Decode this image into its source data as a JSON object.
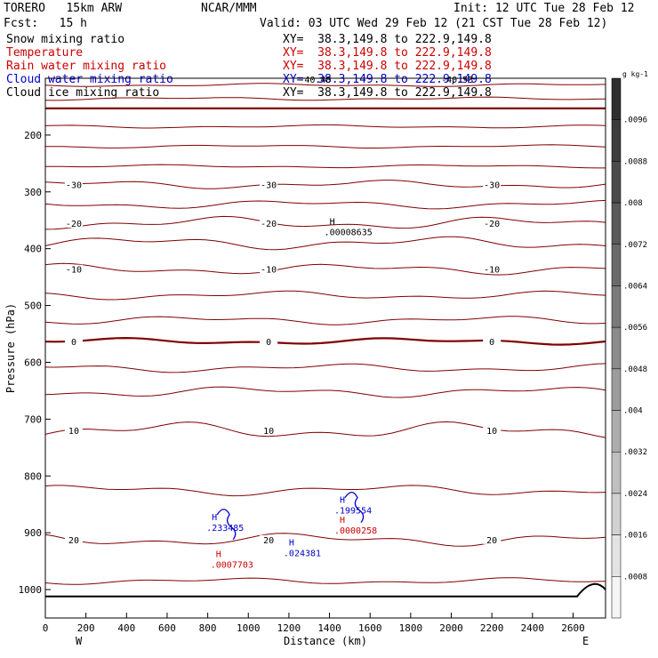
{
  "header": {
    "model": "TORERO   15km ARW",
    "org": "NCAR/MMM",
    "init": "Init: 12 UTC Tue 28 Feb 12",
    "fcst": "Fcst:   15 h",
    "valid": "Valid: 03 UTC Wed 29 Feb 12 (21 CST Tue 28 Feb 12)"
  },
  "fields": [
    {
      "name": "Snow mixing ratio",
      "xy": "XY=  38.3,149.8 to 222.9,149.8",
      "color": "#000000"
    },
    {
      "name": "Temperature",
      "xy": "XY=  38.3,149.8 to 222.9,149.8",
      "color": "#cc0000"
    },
    {
      "name": "Rain water mixing ratio",
      "xy": "XY=  38.3,149.8 to 222.9,149.8",
      "color": "#cc0000"
    },
    {
      "name": "Cloud water mixing ratio",
      "xy": "XY=  38.3,149.8 to 222.9,149.8",
      "color": "#0000cc"
    },
    {
      "name": "Cloud ice mixing ratio",
      "xy": "XY=  38.3,149.8 to 222.9,149.8",
      "color": "#000000"
    }
  ],
  "chart_data": {
    "type": "line",
    "xlabel": "Distance (km)",
    "ylabel": "Pressure (hPa)",
    "xlim": [
      0,
      2760
    ],
    "ylim": [
      1050,
      100
    ],
    "x_ticks": [
      "0",
      "200",
      "400",
      "600",
      "800",
      "1000",
      "1200",
      "1400",
      "1600",
      "1800",
      "2000",
      "2200",
      "2400",
      "2600"
    ],
    "y_ticks": [
      "200",
      "300",
      "400",
      "500",
      "600",
      "700",
      "800",
      "900",
      "1000"
    ],
    "left_end_label": "W",
    "right_end_label": "E",
    "temperature_isotherms": {
      "color": "#800000",
      "levels": [
        {
          "p": 112,
          "label": "",
          "slope": 3
        },
        {
          "p": 136,
          "label": "",
          "slope": 3
        },
        {
          "p": 153,
          "label": "",
          "slope": 0,
          "bold": true
        },
        {
          "p": 185,
          "label": "",
          "slope": 3
        },
        {
          "p": 220,
          "label": "",
          "slope": 3
        },
        {
          "p": 255,
          "label": "",
          "slope": 3
        },
        {
          "p": 287,
          "label": "-30",
          "slope": 8
        },
        {
          "p": 322,
          "label": "",
          "slope": 8
        },
        {
          "p": 355,
          "label": "-20",
          "slope": 12
        },
        {
          "p": 390,
          "label": "",
          "slope": 12
        },
        {
          "p": 436,
          "label": "-10",
          "slope": 10
        },
        {
          "p": 482,
          "label": "",
          "slope": 8
        },
        {
          "p": 526,
          "label": "",
          "slope": 8
        },
        {
          "p": 563,
          "label": "0",
          "slope": 6,
          "bold": true
        },
        {
          "p": 610,
          "label": "",
          "slope": 8
        },
        {
          "p": 652,
          "label": "",
          "slope": 10
        },
        {
          "p": 720,
          "label": "10",
          "slope": 16
        },
        {
          "p": 825,
          "label": "",
          "slope": 10
        },
        {
          "p": 912,
          "label": "20",
          "slope": 12
        },
        {
          "p": 985,
          "label": "",
          "slope": 6
        }
      ],
      "extra_labels": [
        "-40.48",
        "-40.53",
        "-30",
        "-30",
        "-30",
        "-20",
        "-20",
        "-20",
        "-20",
        "-10",
        "-10",
        "-10",
        "0",
        "0",
        "10",
        "10",
        "20",
        "20",
        "20"
      ]
    },
    "maxima": [
      {
        "field": "Snow mixing ratio",
        "label": "H",
        "value": ".00008635",
        "x": 1400,
        "p": 370,
        "color": "#000000"
      },
      {
        "field": "Cloud water mixing ratio",
        "label": "H",
        "value": ".233485",
        "x": 820,
        "p": 890,
        "color": "#0000cc"
      },
      {
        "field": "Cloud water mixing ratio",
        "label": "H",
        "value": ".199554",
        "x": 1450,
        "p": 860,
        "color": "#0000cc"
      },
      {
        "field": "Cloud water mixing ratio",
        "label": "H",
        "value": ".024381",
        "x": 1200,
        "p": 935,
        "color": "#0000cc"
      },
      {
        "field": "Rain water mixing ratio",
        "label": "H",
        "value": ".0007703",
        "x": 840,
        "p": 955,
        "color": "#cc0000"
      },
      {
        "field": "Rain water mixing ratio",
        "label": "H",
        "value": ".0000258",
        "x": 1450,
        "p": 895,
        "color": "#cc0000"
      }
    ],
    "terrain": {
      "p": 1012,
      "bump_x": [
        2620,
        2700,
        2760
      ],
      "bump_p": [
        1012,
        985,
        1000
      ]
    },
    "colorbar": {
      "unit": "g kg-1",
      "ticks": [
        ".0096",
        ".0088",
        ".008",
        ".0072",
        ".0064",
        ".0056",
        ".0048",
        ".004",
        ".0032",
        ".0024",
        ".0016",
        ".0008"
      ],
      "colors": [
        "#2e2e2e",
        "#3c3c3c",
        "#4b4b4b",
        "#5a5a5a",
        "#6a6a6a",
        "#7a7a7a",
        "#8b8b8b",
        "#9c9c9c",
        "#adadad",
        "#bfbfbf",
        "#d1d1d1",
        "#e3e3e3",
        "#f5f5f5"
      ]
    }
  }
}
